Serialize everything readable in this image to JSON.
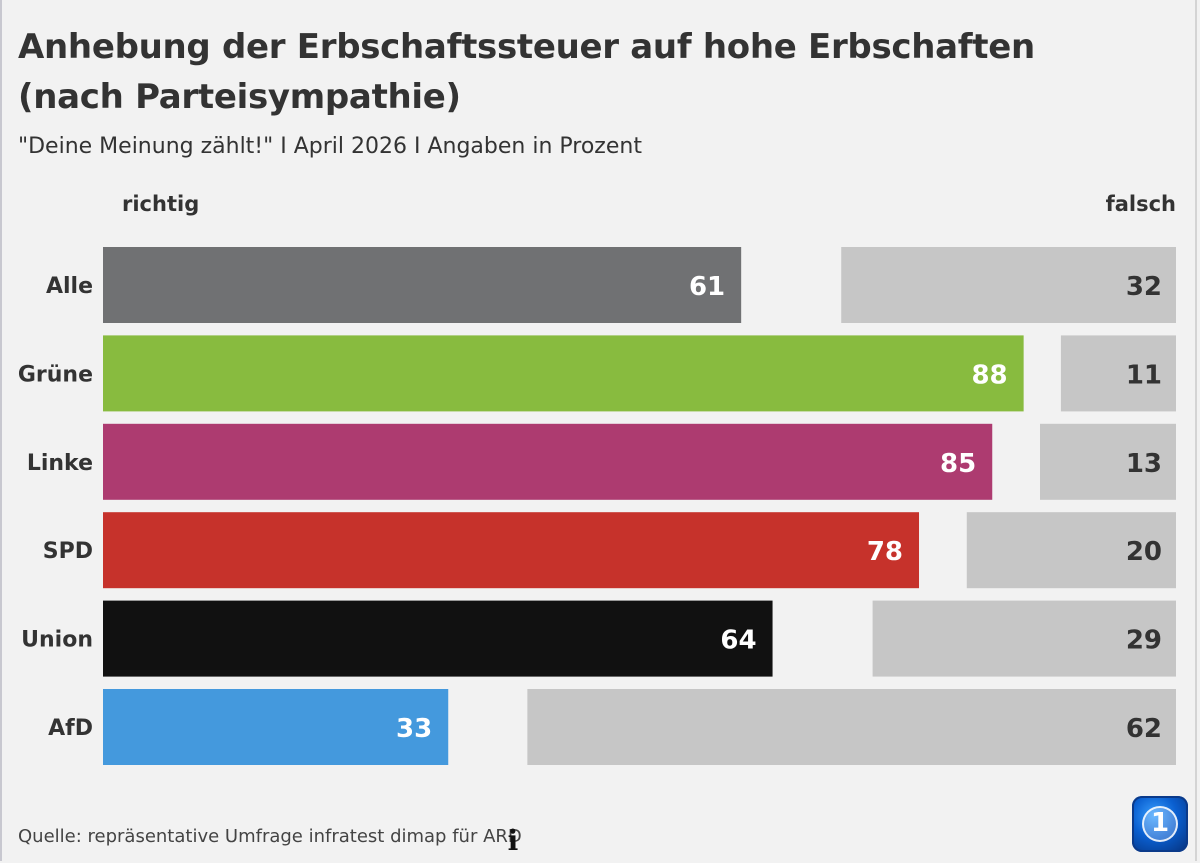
{
  "title": "Anhebung der Erbschaftssteuer auf hohe Erbschaften (nach Parteisympathie)",
  "subtitle": "\"Deine Meinung zählt!\" I April 2026 I Angaben in Prozent",
  "legend": {
    "left": "richtig",
    "right": "falsch"
  },
  "source": "Quelle: repräsentative Umfrage infratest dimap für ARD",
  "info_icon": "info-icon",
  "logo": {
    "text": "1"
  },
  "chart_data": {
    "type": "bar",
    "orientation": "horizontal-diverging",
    "categories": [
      "Alle",
      "Grüne",
      "Linke",
      "SPD",
      "Union",
      "AfD"
    ],
    "series": [
      {
        "name": "richtig",
        "values": [
          61,
          88,
          85,
          78,
          64,
          33
        ]
      },
      {
        "name": "falsch",
        "values": [
          32,
          11,
          13,
          20,
          29,
          62
        ]
      }
    ],
    "colors": {
      "richtig": [
        "#707173",
        "#88bb3f",
        "#ad3b70",
        "#c6322b",
        "#111111",
        "#4499dd"
      ],
      "falsch": "#c6c6c6"
    },
    "xlim": [
      0,
      100
    ],
    "legend": "top"
  }
}
